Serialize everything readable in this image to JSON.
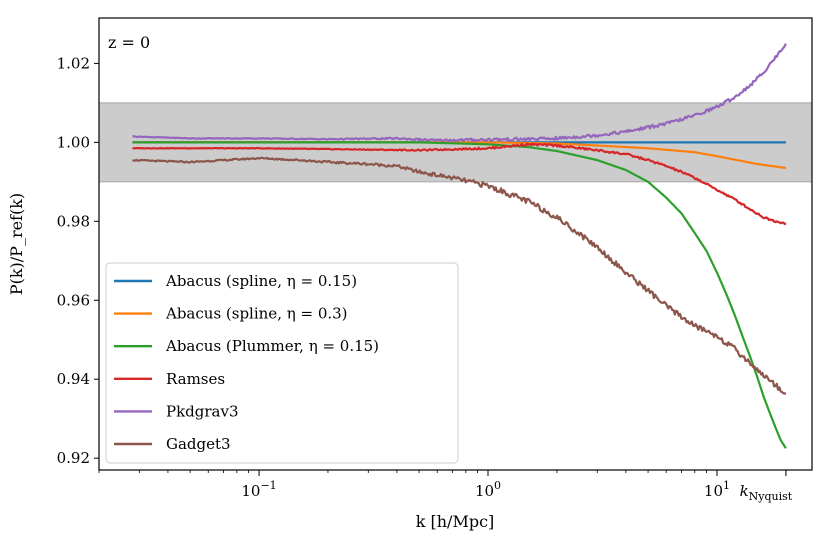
{
  "chart_data": {
    "type": "line",
    "annotation": "z = 0",
    "xlabel": "k [h/Mpc]",
    "ylabel": "P(k)/P_ref(k)",
    "xscale": "log",
    "xlim": [
      0.02,
      26
    ],
    "ylim": [
      0.917,
      1.0315
    ],
    "band": {
      "y0": 0.99,
      "y1": 1.01,
      "color": "#cccccc"
    },
    "y_ticks": [
      0.92,
      0.94,
      0.96,
      0.98,
      1.0,
      1.02
    ],
    "y_tick_labels": [
      "0.92",
      "0.94",
      "0.96",
      "0.98",
      "1.00",
      "1.02"
    ],
    "x_ticks": [
      {
        "value": 0.1,
        "base": "10",
        "exp": "−1"
      },
      {
        "value": 1,
        "base": "10",
        "exp": "0"
      },
      {
        "value": 10,
        "base": "10",
        "exp": "1"
      }
    ],
    "nyquist_label": {
      "value": 20,
      "main": "k",
      "sub": "Nyquist"
    },
    "legend_position": "lower-left",
    "series": [
      {
        "name": "Abacus (spline, η = 0.15)",
        "color": "#1f77b4",
        "x": [
          0.028,
          0.1,
          1,
          10,
          20
        ],
        "y": [
          1.0,
          1.0,
          1.0,
          1.0,
          1.0
        ]
      },
      {
        "name": "Abacus (spline, η = 0.3)",
        "color": "#ff7f0e",
        "x": [
          0.028,
          0.1,
          1,
          2,
          3,
          5,
          8,
          10,
          15,
          20
        ],
        "y": [
          1.0,
          1.0,
          1.0,
          0.9997,
          0.9992,
          0.9985,
          0.9975,
          0.9965,
          0.9945,
          0.9935
        ]
      },
      {
        "name": "Abacus (Plummer, η = 0.15)",
        "color": "#2ca02c",
        "x": [
          0.028,
          0.1,
          0.5,
          1,
          1.5,
          2,
          3,
          4,
          5,
          6,
          7,
          8,
          9,
          10,
          11,
          12,
          13,
          14,
          15,
          16,
          17,
          18,
          19,
          20
        ],
        "y": [
          1.0,
          1.0,
          1.0,
          0.9995,
          0.9988,
          0.9978,
          0.9955,
          0.993,
          0.99,
          0.986,
          0.982,
          0.977,
          0.9725,
          0.967,
          0.9615,
          0.956,
          0.9505,
          0.9455,
          0.9405,
          0.9355,
          0.9315,
          0.9278,
          0.9245,
          0.9225
        ]
      },
      {
        "name": "Ramses",
        "color": "#d62728",
        "x": [
          0.028,
          0.1,
          0.5,
          1,
          1.5,
          2,
          3,
          4,
          5,
          6,
          7,
          8,
          10,
          12,
          14,
          16,
          18,
          20
        ],
        "y": [
          0.9985,
          0.9985,
          0.998,
          0.9985,
          0.9995,
          0.9992,
          0.998,
          0.997,
          0.9955,
          0.994,
          0.9925,
          0.991,
          0.988,
          0.9855,
          0.983,
          0.981,
          0.98,
          0.9795
        ]
      },
      {
        "name": "Pkdgrav3",
        "color": "#9467bd",
        "x": [
          0.028,
          0.05,
          0.1,
          0.2,
          0.4,
          0.6,
          1,
          1.5,
          2,
          3,
          4,
          5,
          6,
          8,
          10,
          12,
          14,
          16,
          18,
          20
        ],
        "y": [
          1.0015,
          1.001,
          1.001,
          1.0008,
          1.001,
          1.0005,
          1.0007,
          1.0008,
          1.001,
          1.0018,
          1.0027,
          1.0038,
          1.0047,
          1.0068,
          1.009,
          1.0115,
          1.0145,
          1.0178,
          1.0215,
          1.025
        ]
      },
      {
        "name": "Gadget3",
        "color": "#8c564b",
        "x": [
          0.028,
          0.05,
          0.1,
          0.15,
          0.2,
          0.3,
          0.4,
          0.5,
          0.7,
          1,
          1.5,
          2,
          3,
          4,
          5,
          6,
          8,
          10,
          12,
          14,
          16,
          18,
          20
        ],
        "y": [
          0.9955,
          0.995,
          0.996,
          0.9955,
          0.995,
          0.9945,
          0.994,
          0.9925,
          0.991,
          0.989,
          0.985,
          0.981,
          0.9735,
          0.967,
          0.9625,
          0.9585,
          0.9535,
          0.951,
          0.9475,
          0.944,
          0.941,
          0.9385,
          0.9365
        ]
      }
    ]
  }
}
